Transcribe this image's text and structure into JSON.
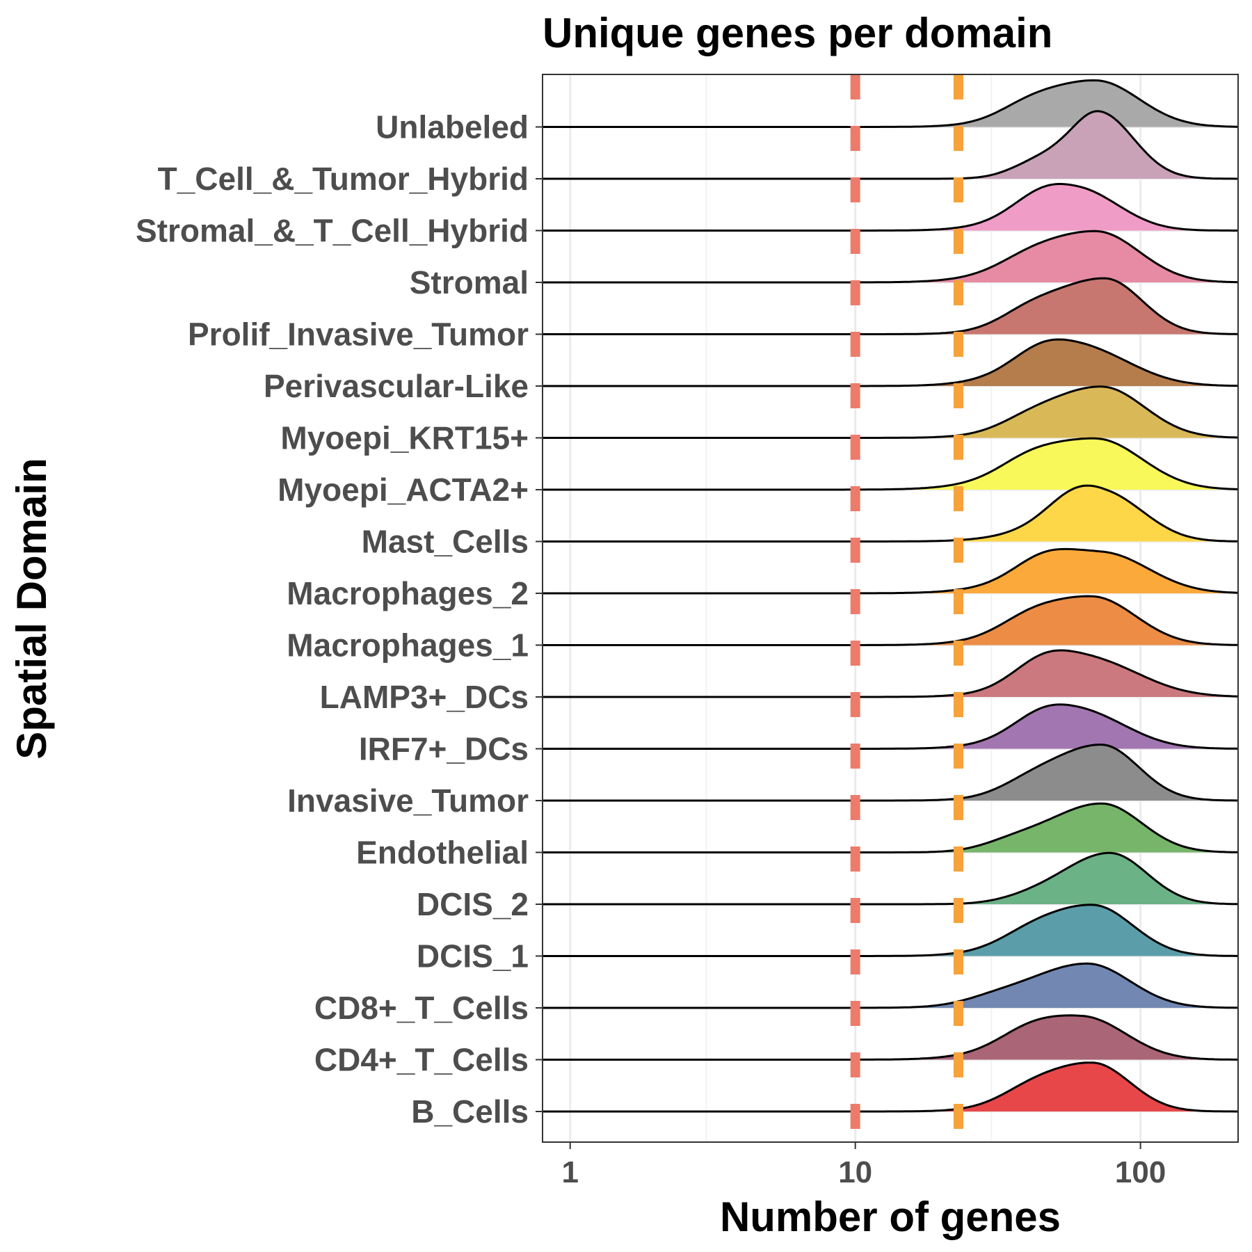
{
  "chart_data": {
    "type": "ridgeline",
    "title": "Unique genes per domain",
    "xlabel": "Number of genes",
    "ylabel": "Spatial Domain",
    "x_scale": "log10",
    "xlim": [
      0.8,
      220
    ],
    "x_ticks": [
      {
        "value": 1,
        "label": "1"
      },
      {
        "value": 10,
        "label": "10"
      },
      {
        "value": 100,
        "label": "100"
      }
    ],
    "grid": true,
    "reference_lines": [
      {
        "value": 10,
        "color": "#ED7B6C",
        "style": "dashed"
      },
      {
        "value": 23,
        "color": "#F7A23A",
        "style": "dashed"
      }
    ],
    "categories": [
      {
        "name": "B_Cells",
        "color": "#E8474A",
        "peak": 68,
        "widthL": 0.19,
        "widthR": 0.13,
        "height": 1.05,
        "shoulder": [
          40,
          0.25
        ]
      },
      {
        "name": "CD4+_T_Cells",
        "color": "#AA6577",
        "peak": 63,
        "widthL": 0.21,
        "widthR": 0.15,
        "height": 0.95,
        "shoulder": [
          40,
          0.35
        ]
      },
      {
        "name": "CD8+_T_Cells",
        "color": "#7288B2",
        "peak": 65,
        "widthL": 0.21,
        "widthR": 0.15,
        "height": 0.95,
        "shoulder": [
          30,
          0.15
        ]
      },
      {
        "name": "DCIS_1",
        "color": "#5B9EAA",
        "peak": 68,
        "widthL": 0.2,
        "widthR": 0.14,
        "height": 1.1,
        "shoulder": [
          40,
          0.2
        ]
      },
      {
        "name": "DCIS_2",
        "color": "#6BB287",
        "peak": 78,
        "widthL": 0.17,
        "widthR": 0.13,
        "height": 1.1,
        "shoulder": [
          40,
          0.1
        ]
      },
      {
        "name": "Endothelial",
        "color": "#77B56A",
        "peak": 73,
        "widthL": 0.19,
        "widthR": 0.14,
        "height": 1.05,
        "shoulder": [
          35,
          0.2
        ]
      },
      {
        "name": "Invasive_Tumor",
        "color": "#8C8C8C",
        "peak": 73,
        "widthL": 0.19,
        "widthR": 0.13,
        "height": 1.2,
        "shoulder": [
          40,
          0.2
        ]
      },
      {
        "name": "IRF7+_DCs",
        "color": "#A276B0",
        "peak": 62,
        "widthL": 0.19,
        "widthR": 0.16,
        "height": 0.95,
        "shoulder": [
          45,
          0.6
        ]
      },
      {
        "name": "LAMP3+_DCs",
        "color": "#CB797E",
        "peak": 65,
        "widthL": 0.19,
        "widthR": 0.18,
        "height": 1.0,
        "shoulder": [
          45,
          0.7
        ]
      },
      {
        "name": "Macrophages_1",
        "color": "#EC8C45",
        "peak": 68,
        "widthL": 0.21,
        "widthR": 0.15,
        "height": 1.05,
        "shoulder": [
          40,
          0.3
        ]
      },
      {
        "name": "Macrophages_2",
        "color": "#FBA93A",
        "peak": 74,
        "widthL": 0.23,
        "widthR": 0.16,
        "height": 0.95,
        "shoulder": [
          45,
          0.6
        ]
      },
      {
        "name": "Mast_Cells",
        "color": "#FDD748",
        "peak": 80,
        "widthL": 0.21,
        "widthR": 0.13,
        "height": 1.2,
        "shoulder": [
          60,
          0.9
        ]
      },
      {
        "name": "Myoepi_ACTA2+",
        "color": "#F9F85A",
        "peak": 70,
        "widthL": 0.23,
        "widthR": 0.16,
        "height": 1.1,
        "shoulder": [
          40,
          0.3
        ]
      },
      {
        "name": "Myoepi_KRT15+",
        "color": "#D9B857",
        "peak": 73,
        "widthL": 0.2,
        "widthR": 0.15,
        "height": 1.1,
        "shoulder": [
          40,
          0.2
        ]
      },
      {
        "name": "Perivascular-Like",
        "color": "#B57C4C",
        "peak": 62,
        "widthL": 0.2,
        "widthR": 0.17,
        "height": 1.0,
        "shoulder": [
          45,
          0.6
        ]
      },
      {
        "name": "Prolif_Invasive_Tumor",
        "color": "#C77770",
        "peak": 75,
        "widthL": 0.2,
        "widthR": 0.13,
        "height": 1.2,
        "shoulder": [
          40,
          0.3
        ]
      },
      {
        "name": "Stromal",
        "color": "#E68BA3",
        "peak": 70,
        "widthL": 0.22,
        "widthR": 0.15,
        "height": 1.1,
        "shoulder": [
          40,
          0.2
        ]
      },
      {
        "name": "Stromal_&_T_Cell_Hybrid",
        "color": "#EF9CC7",
        "peak": 62,
        "widthL": 0.19,
        "widthR": 0.14,
        "height": 1.0,
        "shoulder": [
          45,
          0.6
        ]
      },
      {
        "name": "T_Cell_&_Tumor_Hybrid",
        "color": "#C9A2B8",
        "peak": 72,
        "widthL": 0.1,
        "widthR": 0.12,
        "height": 1.45,
        "shoulder": [
          45,
          0.45
        ]
      },
      {
        "name": "Unlabeled",
        "color": "#A9A9A9",
        "peak": 70,
        "widthL": 0.2,
        "widthR": 0.15,
        "height": 1.0,
        "shoulder": [
          40,
          0.3
        ]
      }
    ]
  }
}
